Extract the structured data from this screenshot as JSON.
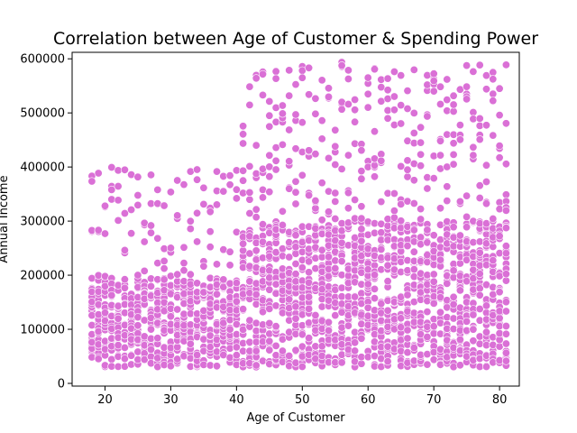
{
  "chart_data": {
    "type": "scatter",
    "title": "Correlation between Age of Customer & Spending Power",
    "xlabel": "Age of Customer",
    "ylabel": "Annual Income",
    "xlim": [
      15,
      83
    ],
    "ylim": [
      -5000,
      612000
    ],
    "xticks": [
      20,
      30,
      40,
      50,
      60,
      70,
      80
    ],
    "yticks": [
      0,
      100000,
      200000,
      300000,
      400000,
      500000,
      600000
    ],
    "marker_color": "#da70d6",
    "marker_edge_color": "#ffffff",
    "grid": false,
    "legend": "none",
    "distribution": {
      "age_range": [
        18,
        81
      ],
      "ages_18_to_40": {
        "dense_income_range": [
          30000,
          195000
        ],
        "sparse_income_range": [
          195000,
          400000
        ]
      },
      "ages_41_to_81": {
        "dense_income_range": [
          30000,
          300000
        ],
        "sparse_income_range": [
          300000,
          595000
        ]
      }
    }
  }
}
